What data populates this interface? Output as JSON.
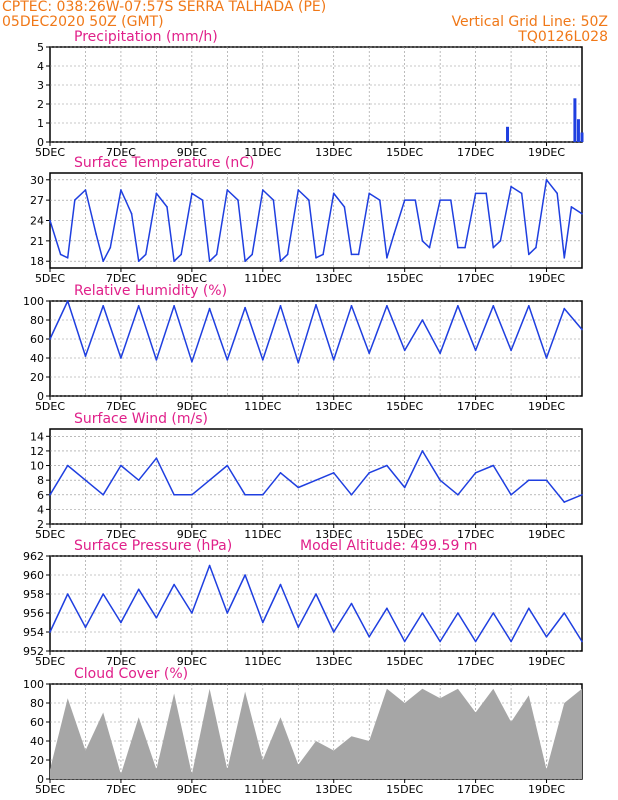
{
  "header": {
    "line1": "CPTEC:   038:26W-07:57S   SERRA TALHADA (PE)",
    "line2": "05DEC2020 50Z (GMT)",
    "right1": "Vertical Grid Line: 50Z",
    "right2": "TQ0126L028"
  },
  "colors": {
    "header": "#f07818",
    "title": "#e0208a",
    "series": "#1f3fe0",
    "cloud": "#a6a6a6",
    "grid": "#909090"
  },
  "x_ticks": [
    "5DEC",
    "7DEC",
    "9DEC",
    "11DEC",
    "13DEC",
    "15DEC",
    "17DEC",
    "19DEC"
  ],
  "panels": [
    {
      "key": "precip",
      "title": "Precipitation (mm/h)",
      "yticks": [
        "0",
        "1",
        "2",
        "3",
        "4",
        "5"
      ]
    },
    {
      "key": "temp",
      "title": "Surface Temperature (nC)",
      "yticks": [
        "18",
        "21",
        "24",
        "27",
        "30"
      ]
    },
    {
      "key": "rh",
      "title": "Relative Humidity (%)",
      "yticks": [
        "0",
        "20",
        "40",
        "60",
        "80",
        "100"
      ]
    },
    {
      "key": "wind",
      "title": "Surface Wind (m/s)",
      "yticks": [
        "2",
        "4",
        "6",
        "8",
        "10",
        "12",
        "14"
      ]
    },
    {
      "key": "pres",
      "title": "Surface Pressure (hPa)",
      "extra": "Model Altitude: 499.59 m",
      "yticks": [
        "952",
        "954",
        "956",
        "958",
        "960",
        "962"
      ]
    },
    {
      "key": "cloud",
      "title": "Cloud Cover (%)",
      "yticks": [
        "0",
        "20",
        "40",
        "60",
        "80",
        "100"
      ]
    }
  ],
  "chart_data": [
    {
      "type": "bar",
      "title": "Precipitation (mm/h)",
      "ylim": [
        0,
        5
      ],
      "x": [
        "17.9DEC",
        "19.8DEC",
        "19.9DEC",
        "20.0DEC"
      ],
      "values": [
        0.8,
        2.3,
        1.2,
        0.5
      ]
    },
    {
      "type": "line",
      "title": "Surface Temperature (nC)",
      "ylim": [
        17,
        31
      ],
      "x": [
        "5.0DEC",
        "5.3DEC",
        "5.5DEC",
        "5.7DEC",
        "6.0DEC",
        "6.3DEC",
        "6.5DEC",
        "6.7DEC",
        "7.0DEC",
        "7.3DEC",
        "7.5DEC",
        "7.7DEC",
        "8.0DEC",
        "8.3DEC",
        "8.5DEC",
        "8.7DEC",
        "9.0DEC",
        "9.3DEC",
        "9.5DEC",
        "9.7DEC",
        "10.0DEC",
        "10.3DEC",
        "10.5DEC",
        "10.7DEC",
        "11.0DEC",
        "11.3DEC",
        "11.5DEC",
        "11.7DEC",
        "12.0DEC",
        "12.3DEC",
        "12.5DEC",
        "12.7DEC",
        "13.0DEC",
        "13.3DEC",
        "13.5DEC",
        "13.7DEC",
        "14.0DEC",
        "14.3DEC",
        "14.5DEC",
        "14.7DEC",
        "15.0DEC",
        "15.3DEC",
        "15.5DEC",
        "15.7DEC",
        "16.0DEC",
        "16.3DEC",
        "16.5DEC",
        "16.7DEC",
        "17.0DEC",
        "17.3DEC",
        "17.5DEC",
        "17.7DEC",
        "18.0DEC",
        "18.3DEC",
        "18.5DEC",
        "18.7DEC",
        "19.0DEC",
        "19.3DEC",
        "19.5DEC",
        "19.7DEC",
        "20.0DEC"
      ],
      "values": [
        24,
        19,
        18.5,
        27,
        28.5,
        22,
        18,
        20,
        28.5,
        25,
        18,
        19,
        28,
        26,
        18,
        19,
        28,
        27,
        18,
        19,
        28.5,
        27,
        18,
        19,
        28.5,
        27,
        18,
        19,
        28.5,
        27,
        18.5,
        19,
        28,
        26,
        19,
        19,
        28,
        27,
        18.5,
        22,
        27,
        27,
        21,
        20,
        27,
        27,
        20,
        20,
        28,
        28,
        20,
        21,
        29,
        28,
        19,
        20,
        30,
        28,
        18.5,
        26,
        25
      ]
    },
    {
      "type": "line",
      "title": "Relative Humidity (%)",
      "ylim": [
        0,
        100
      ],
      "x": [
        "5.0DEC",
        "5.5DEC",
        "6.0DEC",
        "6.5DEC",
        "7.0DEC",
        "7.5DEC",
        "8.0DEC",
        "8.5DEC",
        "9.0DEC",
        "9.5DEC",
        "10.0DEC",
        "10.5DEC",
        "11.0DEC",
        "11.5DEC",
        "12.0DEC",
        "12.5DEC",
        "13.0DEC",
        "13.5DEC",
        "14.0DEC",
        "14.5DEC",
        "15.0DEC",
        "15.5DEC",
        "16.0DEC",
        "16.5DEC",
        "17.0DEC",
        "17.5DEC",
        "18.0DEC",
        "18.5DEC",
        "19.0DEC",
        "19.5DEC",
        "20.0DEC"
      ],
      "values": [
        60,
        100,
        42,
        95,
        40,
        95,
        38,
        95,
        36,
        92,
        38,
        93,
        38,
        95,
        35,
        96,
        38,
        95,
        45,
        95,
        48,
        80,
        45,
        95,
        48,
        95,
        48,
        95,
        40,
        92,
        70
      ]
    },
    {
      "type": "line",
      "title": "Surface Wind (m/s)",
      "ylim": [
        2,
        15
      ],
      "x": [
        "5.0DEC",
        "5.5DEC",
        "6.0DEC",
        "6.5DEC",
        "7.0DEC",
        "7.5DEC",
        "8.0DEC",
        "8.5DEC",
        "9.0DEC",
        "9.5DEC",
        "10.0DEC",
        "10.5DEC",
        "11.0DEC",
        "11.5DEC",
        "12.0DEC",
        "12.5DEC",
        "13.0DEC",
        "13.5DEC",
        "14.0DEC",
        "14.5DEC",
        "15.0DEC",
        "15.5DEC",
        "16.0DEC",
        "16.5DEC",
        "17.0DEC",
        "17.5DEC",
        "18.0DEC",
        "18.5DEC",
        "19.0DEC",
        "19.5DEC",
        "20.0DEC"
      ],
      "values": [
        6,
        10,
        8,
        6,
        10,
        8,
        11,
        6,
        6,
        8,
        10,
        6,
        6,
        9,
        7,
        8,
        9,
        6,
        9,
        10,
        7,
        12,
        8,
        6,
        9,
        10,
        6,
        8,
        8,
        5,
        6
      ]
    },
    {
      "type": "line",
      "title": "Surface Pressure (hPa)",
      "ylim": [
        952,
        962
      ],
      "x": [
        "5.0DEC",
        "5.5DEC",
        "6.0DEC",
        "6.5DEC",
        "7.0DEC",
        "7.5DEC",
        "8.0DEC",
        "8.5DEC",
        "9.0DEC",
        "9.5DEC",
        "10.0DEC",
        "10.5DEC",
        "11.0DEC",
        "11.5DEC",
        "12.0DEC",
        "12.5DEC",
        "13.0DEC",
        "13.5DEC",
        "14.0DEC",
        "14.5DEC",
        "15.0DEC",
        "15.5DEC",
        "16.0DEC",
        "16.5DEC",
        "17.0DEC",
        "17.5DEC",
        "18.0DEC",
        "18.5DEC",
        "19.0DEC",
        "19.5DEC",
        "20.0DEC"
      ],
      "values": [
        954,
        958,
        954.5,
        958,
        955,
        958.5,
        955.5,
        959,
        956,
        961,
        956,
        960,
        955,
        959,
        954.5,
        958,
        954,
        957,
        953.5,
        956.5,
        953,
        956,
        953,
        956,
        953,
        956,
        953,
        956.5,
        953.5,
        956,
        953
      ]
    },
    {
      "type": "area",
      "title": "Cloud Cover (%)",
      "ylim": [
        0,
        100
      ],
      "x": [
        "5.0DEC",
        "5.5DEC",
        "6.0DEC",
        "6.5DEC",
        "7.0DEC",
        "7.5DEC",
        "8.0DEC",
        "8.5DEC",
        "9.0DEC",
        "9.5DEC",
        "10.0DEC",
        "10.5DEC",
        "11.0DEC",
        "11.5DEC",
        "12.0DEC",
        "12.5DEC",
        "13.0DEC",
        "13.5DEC",
        "14.0DEC",
        "14.5DEC",
        "15.0DEC",
        "15.5DEC",
        "16.0DEC",
        "16.5DEC",
        "17.0DEC",
        "17.5DEC",
        "18.0DEC",
        "18.5DEC",
        "19.0DEC",
        "19.5DEC",
        "20.0DEC"
      ],
      "values": [
        10,
        85,
        30,
        70,
        5,
        65,
        10,
        90,
        5,
        95,
        10,
        92,
        20,
        65,
        15,
        40,
        30,
        45,
        40,
        95,
        80,
        95,
        85,
        95,
        70,
        95,
        60,
        88,
        10,
        80,
        95
      ]
    }
  ]
}
